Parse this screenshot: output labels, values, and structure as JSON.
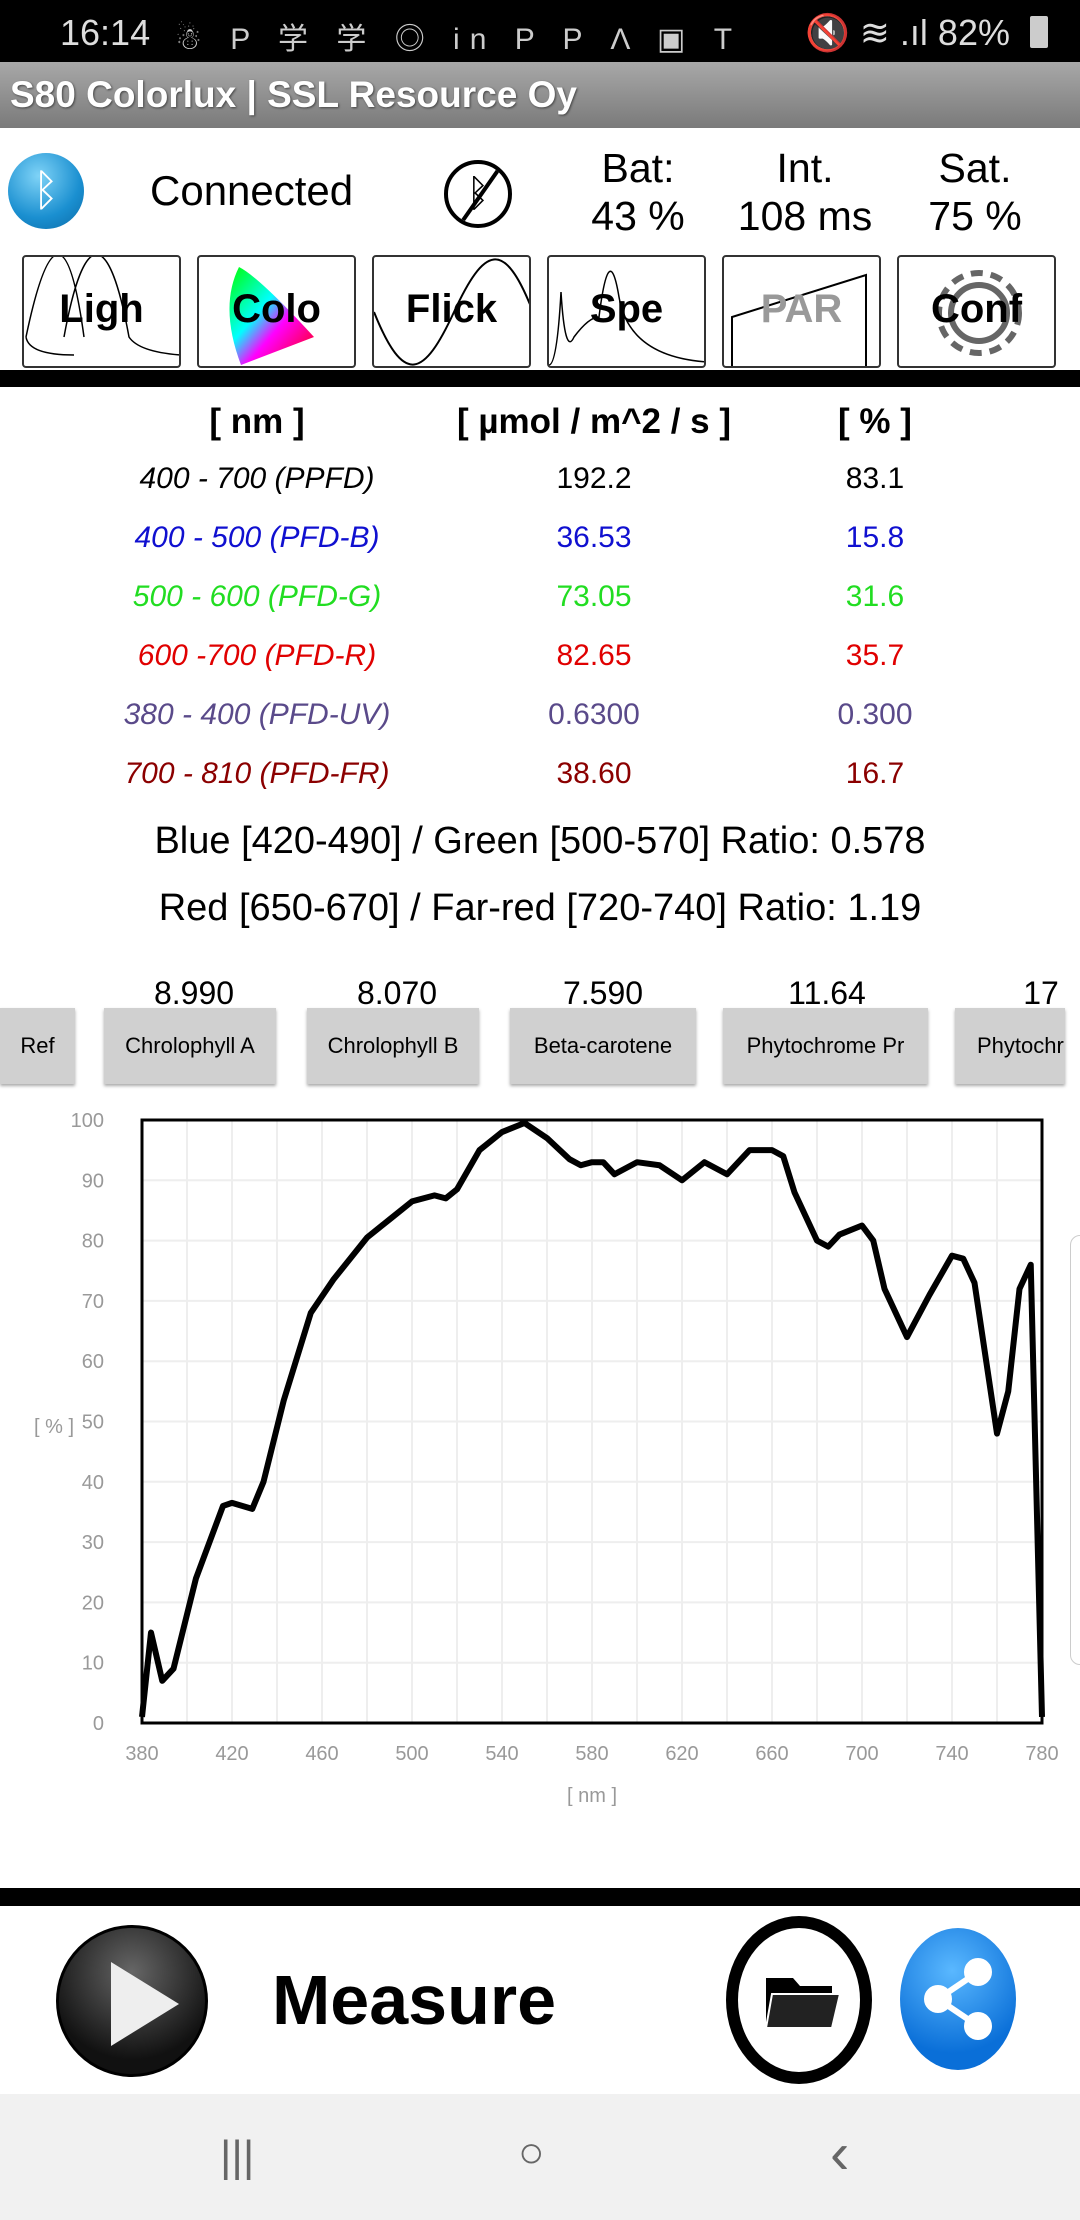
{
  "status_bar": {
    "time": "16:14",
    "icons": "☃ P 学 学 ◎ in P P Λ ▣ T",
    "right": "🔇 ≋ .ıl 82%"
  },
  "app": {
    "title": "S80 Colorlux  |  SSL Resource Oy"
  },
  "connection": {
    "status": "Connected",
    "battery_label": "Bat:",
    "battery_value": "43 %",
    "int_label": "Int.",
    "int_value": "108 ms",
    "sat_label": "Sat.",
    "sat_value": "75 %"
  },
  "tabs": [
    {
      "label": "Ligh"
    },
    {
      "label": "Colo"
    },
    {
      "label": "Flick"
    },
    {
      "label": "Spe"
    },
    {
      "label": "PAR",
      "disabled": true
    },
    {
      "label": "Conf"
    }
  ],
  "table": {
    "headers": [
      "[ nm ]",
      "[ µmol / m^2 / s ]",
      "[ % ]"
    ],
    "rows": [
      {
        "range": "400 - 700 (PPFD)",
        "value": "192.2",
        "percent": "83.1",
        "color": "#000000"
      },
      {
        "range": "400 - 500 (PFD-B)",
        "value": "36.53",
        "percent": "15.8",
        "color": "#1010d0"
      },
      {
        "range": "500 - 600 (PFD-G)",
        "value": "73.05",
        "percent": "31.6",
        "color": "#22dd22"
      },
      {
        "range": "600 -700 (PFD-R)",
        "value": "82.65",
        "percent": "35.7",
        "color": "#e00000"
      },
      {
        "range": "380 - 400 (PFD-UV)",
        "value": "0.6300",
        "percent": "0.300",
        "color": "#5a4a8a"
      },
      {
        "range": "700 - 810 (PFD-FR)",
        "value": "38.60",
        "percent": "16.7",
        "color": "#8b0000"
      }
    ]
  },
  "ratios": [
    "Blue [420-490] / Green [500-570] Ratio: 0.578",
    "Red [650-670] / Far-red [720-740] Ratio: 1.19"
  ],
  "pigments": {
    "values": [
      "8.990",
      "8.070",
      "7.590",
      "11.64",
      "17"
    ],
    "buttons": [
      "Ref",
      "Chrolophyll A",
      "Chrolophyll B",
      "Beta-carotene",
      "Phytochrome Pr",
      "Phytochr"
    ]
  },
  "chart_data": {
    "type": "line",
    "xlabel": "[ nm ]",
    "ylabel": "[ % ]",
    "xlim": [
      380,
      780
    ],
    "ylim": [
      0,
      100
    ],
    "grid": true,
    "xticks": [
      380,
      420,
      460,
      500,
      540,
      580,
      620,
      660,
      700,
      740,
      780
    ],
    "yticks": [
      0,
      10,
      20,
      30,
      40,
      50,
      60,
      70,
      80,
      90,
      100
    ],
    "x": [
      380,
      384,
      389,
      394,
      404,
      416,
      420,
      429,
      434,
      443,
      455,
      465,
      480,
      490,
      500,
      510,
      515,
      520,
      530,
      540,
      550,
      560,
      570,
      575,
      580,
      585,
      590,
      600,
      610,
      620,
      630,
      640,
      650,
      660,
      665,
      670,
      680,
      685,
      690,
      700,
      705,
      710,
      720,
      730,
      740,
      745,
      750,
      760,
      765,
      770,
      775,
      780
    ],
    "y": [
      1,
      15,
      7,
      9,
      24,
      36,
      36.5,
      35.5,
      40,
      53.5,
      68,
      73.5,
      80.5,
      83.5,
      86.5,
      87.5,
      87,
      88.5,
      95,
      98,
      99.5,
      97,
      93.5,
      92.5,
      93,
      93,
      91,
      93,
      92.5,
      90,
      93,
      91,
      95,
      95,
      94,
      88,
      80,
      79,
      81,
      82.5,
      80,
      72,
      64,
      71,
      77.5,
      77,
      73,
      48,
      55,
      72,
      76,
      1
    ]
  },
  "bottom": {
    "measure_label": "Measure"
  },
  "nav": {
    "recent": "|||",
    "home": "○",
    "back": "‹"
  }
}
